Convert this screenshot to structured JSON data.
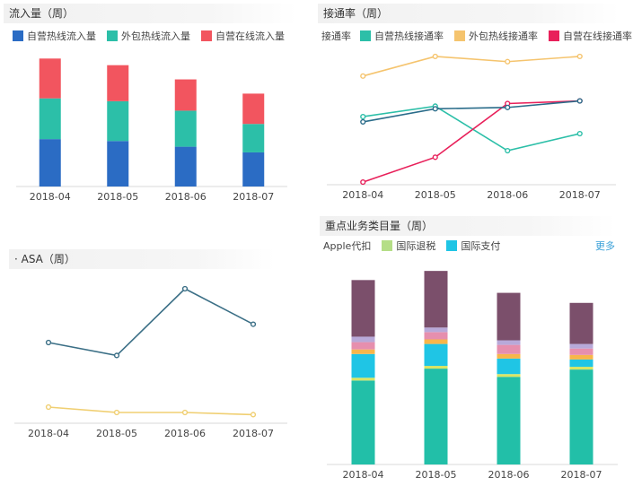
{
  "panels": {
    "inflow": {
      "title": "流入量（周）",
      "legend": [
        {
          "label": "自营热线流入量",
          "color": "#2b6cc4"
        },
        {
          "label": "外包热线流入量",
          "color": "#2cbfa8"
        },
        {
          "label": "自营在线流入量",
          "color": "#f2555f"
        }
      ]
    },
    "connect": {
      "title": "接通率（周）",
      "legend_prefix": "接通率",
      "legend": [
        {
          "label": "自营热线接通率",
          "color": "#2cbfa8"
        },
        {
          "label": "外包热线接通率",
          "color": "#f5c46e"
        },
        {
          "label": "自营在线接通率",
          "color": "#e8205a"
        }
      ]
    },
    "asa": {
      "title": "· ASA（周）"
    },
    "key": {
      "title": "重点业务类目量（周）",
      "legend": [
        {
          "label": "Apple代扣",
          "color": "#ffffff"
        },
        {
          "label": "国际退税",
          "color": "#b5de87"
        },
        {
          "label": "国际支付",
          "color": "#1fc5e5"
        }
      ],
      "more_label": "更多"
    }
  },
  "chart_data": [
    {
      "id": "inflow",
      "type": "bar",
      "stacked": true,
      "categories": [
        "2018-04",
        "2018-05",
        "2018-06",
        "2018-07"
      ],
      "ylim": [
        0,
        140
      ],
      "series": [
        {
          "name": "自营热线流入量",
          "color": "#2b6cc4",
          "values": [
            50,
            48,
            42,
            36
          ]
        },
        {
          "name": "外包热线流入量",
          "color": "#2cbfa8",
          "values": [
            43,
            42,
            38,
            30
          ]
        },
        {
          "name": "自营在线流入量",
          "color": "#f2555f",
          "values": [
            42,
            38,
            33,
            32
          ]
        }
      ]
    },
    {
      "id": "connect",
      "type": "line",
      "categories": [
        "2018-04",
        "2018-05",
        "2018-06",
        "2018-07"
      ],
      "ylim": [
        0,
        1
      ],
      "series": [
        {
          "name": "自营热线接通率",
          "color": "#2cbfa8",
          "values": [
            0.52,
            0.6,
            0.26,
            0.39
          ]
        },
        {
          "name": "外包热线接通率",
          "color": "#f5c46e",
          "values": [
            0.83,
            0.98,
            0.94,
            0.98
          ]
        },
        {
          "name": "自营在线接通率",
          "color": "#e8205a",
          "values": [
            0.02,
            0.21,
            0.62,
            0.64
          ]
        },
        {
          "color": "#2a6c8a",
          "values": [
            0.48,
            0.58,
            0.59,
            0.64
          ]
        }
      ]
    },
    {
      "id": "asa",
      "type": "line",
      "categories": [
        "2018-04",
        "2018-05",
        "2018-06",
        "2018-07"
      ],
      "ylim": [
        0,
        130
      ],
      "series": [
        {
          "color": "#3b6f86",
          "values": [
            75,
            63,
            125,
            92
          ]
        },
        {
          "color": "#f0cf72",
          "values": [
            15,
            10,
            10,
            8
          ]
        }
      ]
    },
    {
      "id": "key",
      "type": "bar",
      "stacked": true,
      "categories": [
        "2018-04",
        "2018-05",
        "2018-06",
        "2018-07"
      ],
      "ylim": [
        0,
        220
      ],
      "series": [
        {
          "color": "#22bfa8",
          "values": [
            92,
            105,
            96,
            104
          ]
        },
        {
          "name": "国际退税",
          "color": "#d9e563",
          "values": [
            3,
            3,
            3,
            3
          ]
        },
        {
          "name": "国际支付",
          "color": "#1fc5e5",
          "values": [
            26,
            24,
            17,
            8
          ]
        },
        {
          "color": "#f7b64a",
          "values": [
            5,
            5,
            5,
            5
          ]
        },
        {
          "color": "#e68fae",
          "values": [
            8,
            8,
            10,
            7
          ]
        },
        {
          "color": "#b8a9d9",
          "values": [
            6,
            5,
            5,
            5
          ]
        },
        {
          "color": "#7b4f6b",
          "values": [
            62,
            62,
            52,
            45
          ]
        }
      ]
    }
  ]
}
